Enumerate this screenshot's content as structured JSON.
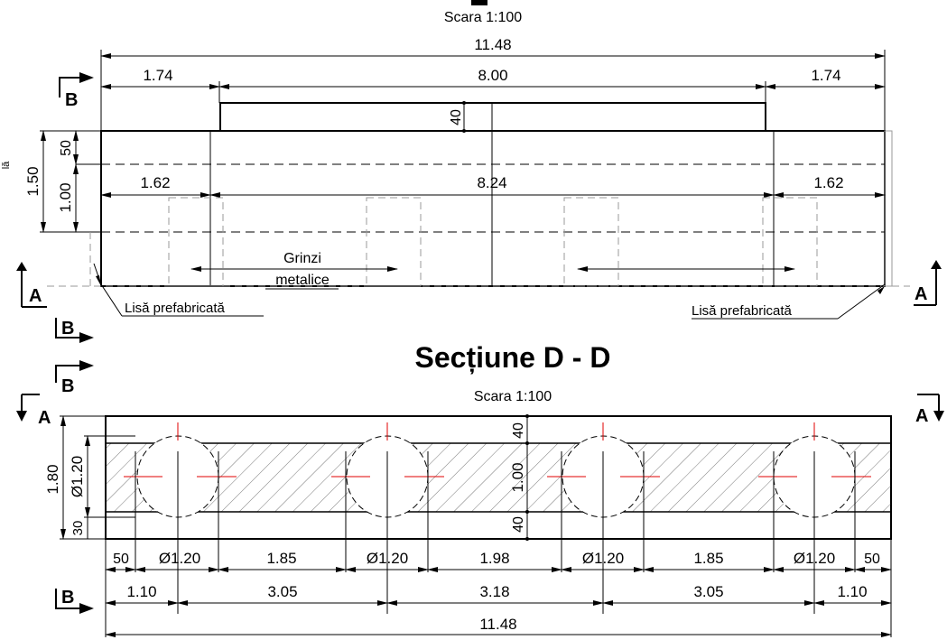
{
  "top_view": {
    "title_partial": "",
    "scale": "Scara 1:100",
    "overall_width": "11.48",
    "top_dims": [
      "1.74",
      "8.00",
      "1.74"
    ],
    "curb_height": "40",
    "left_dims": {
      "total": "1.50",
      "upper": "50",
      "lower": "1.00"
    },
    "edge_text_partial": "lă",
    "mid_dims": [
      "1.62",
      "8.24",
      "1.62"
    ],
    "beams_label_line1": "Grinzi",
    "beams_label_line2": "metalice",
    "rail_label_left": "Lisă prefabricată",
    "rail_label_right": "Lisă prefabricată",
    "section_markers": {
      "A": "A",
      "B": "B"
    }
  },
  "section_dd": {
    "title": "Secțiune D - D",
    "scale": "Scara 1:100",
    "left_dims": {
      "total": "1.80",
      "diameter": "Ø1.20",
      "bottom": "30"
    },
    "right_dims": [
      "40",
      "1.00",
      "40"
    ],
    "row1_dims": [
      "50",
      "Ø1.20",
      "1.85",
      "Ø1.20",
      "1.98",
      "Ø1.20",
      "1.85",
      "Ø1.20",
      "50"
    ],
    "row2_dims": [
      "1.10",
      "3.05",
      "3.18",
      "3.05",
      "1.10"
    ],
    "overall_width": "11.48",
    "section_markers": {
      "A": "A",
      "B": "B"
    }
  }
}
